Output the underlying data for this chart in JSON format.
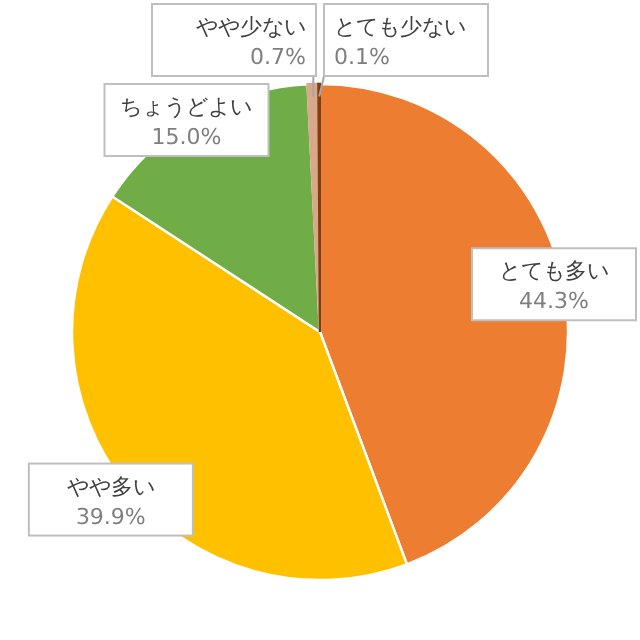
{
  "chart_data": {
    "type": "pie",
    "categories": [
      "とても多い",
      "やや多い",
      "ちょうどよい",
      "やや少ない",
      "とても少ない"
    ],
    "values": [
      44.3,
      39.9,
      15.0,
      0.7,
      0.1
    ],
    "colors": [
      "#ed7d31",
      "#ffc000",
      "#70ad47",
      "#d9a88a",
      "#843c0c"
    ],
    "value_labels": [
      "44.3%",
      "39.9%",
      "15.0%",
      "0.7%",
      "0.1%"
    ]
  }
}
